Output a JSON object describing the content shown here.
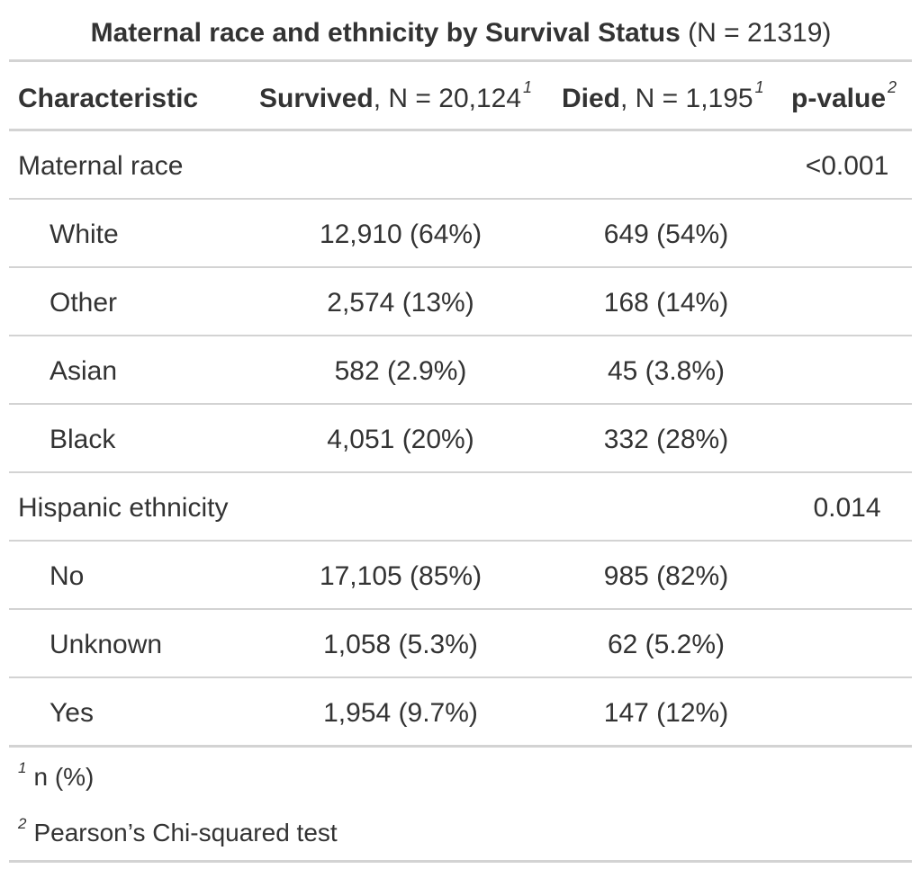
{
  "table": {
    "title_bold": "Maternal race and ethnicity by Survival Status",
    "title_rest": " (N = 21319)",
    "headers": {
      "characteristic": "Characteristic",
      "survived_bold": "Survived",
      "survived_rest": ", N = 20,124",
      "survived_mark": "1",
      "died_bold": "Died",
      "died_rest": ", N = 1,195",
      "died_mark": "1",
      "pvalue": "p-value",
      "pvalue_mark": "2"
    },
    "rows": [
      {
        "label": "Maternal race",
        "survived": "",
        "died": "",
        "pvalue": "<0.001"
      },
      {
        "label": "White",
        "survived": "12,910 (64%)",
        "died": "649 (54%)",
        "pvalue": ""
      },
      {
        "label": "Other",
        "survived": "2,574 (13%)",
        "died": "168 (14%)",
        "pvalue": ""
      },
      {
        "label": "Asian",
        "survived": "582 (2.9%)",
        "died": "45 (3.8%)",
        "pvalue": ""
      },
      {
        "label": "Black",
        "survived": "4,051 (20%)",
        "died": "332 (28%)",
        "pvalue": ""
      },
      {
        "label": "Hispanic ethnicity",
        "survived": "",
        "died": "",
        "pvalue": "0.014"
      },
      {
        "label": "No",
        "survived": "17,105 (85%)",
        "died": "985 (82%)",
        "pvalue": ""
      },
      {
        "label": "Unknown",
        "survived": "1,058 (5.3%)",
        "died": "62 (5.2%)",
        "pvalue": ""
      },
      {
        "label": "Yes",
        "survived": "1,954 (9.7%)",
        "died": "147 (12%)",
        "pvalue": ""
      }
    ],
    "footnotes": [
      {
        "mark": "1",
        "text": "n (%)"
      },
      {
        "mark": "2",
        "text": "Pearson’s Chi-squared test"
      }
    ]
  }
}
